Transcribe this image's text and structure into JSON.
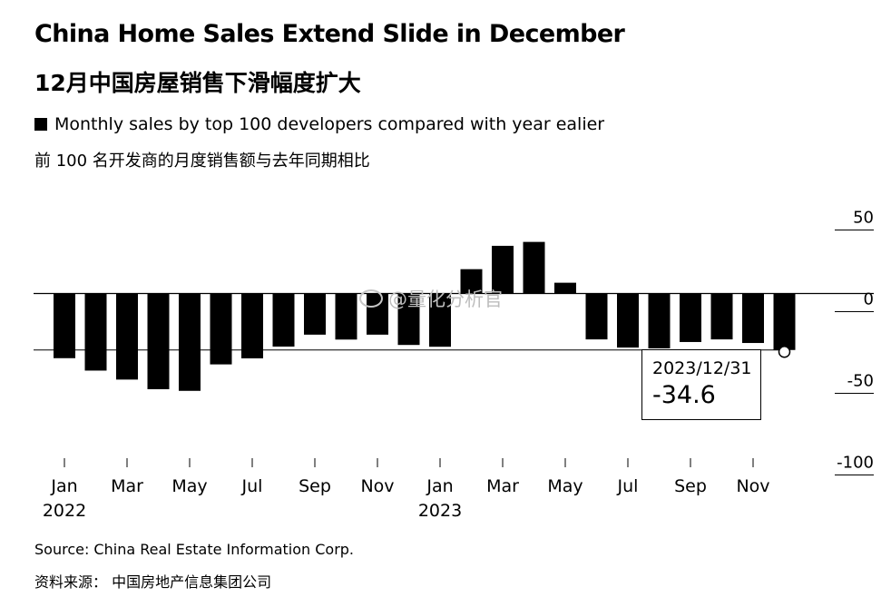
{
  "header": {
    "title": "China Home Sales Extend Slide in December",
    "title_cn": "12月中国房屋销售下滑幅度扩大",
    "subtitle": "Monthly sales by top 100 developers compared with year ealier",
    "subtitle_cn": "前 100 名开发商的月度销售额与去年同期相比"
  },
  "footer": {
    "source": "Source: China Real Estate Information Corp.",
    "source_cn": "资料来源： 中国房地产信息集团公司"
  },
  "watermark": "@量化分析官",
  "tooltip": {
    "date": "2023/12/31",
    "value": "-34.6"
  },
  "colors": {
    "bar": "#000000",
    "axis": "#000000",
    "background": "#ffffff"
  },
  "chart_data": {
    "type": "bar",
    "title": "China Home Sales Extend Slide in December",
    "ylabel": "",
    "xlabel": "",
    "ylim": [
      -100,
      50
    ],
    "y_ticks": [
      50,
      0,
      -50,
      -100
    ],
    "y_tick_labels": [
      "50",
      "0",
      "-50",
      "-100"
    ],
    "x_tick_labels": [
      "Jan",
      "Mar",
      "May",
      "Jul",
      "Sep",
      "Nov",
      "Jan",
      "Mar",
      "May",
      "Jul",
      "Sep",
      "Nov"
    ],
    "x_tick_indices": [
      0,
      2,
      4,
      6,
      8,
      10,
      12,
      14,
      16,
      18,
      20,
      22
    ],
    "year_labels": [
      {
        "label": "2022",
        "index": 0
      },
      {
        "label": "2023",
        "index": 12
      }
    ],
    "categories": [
      "2022-01",
      "2022-02",
      "2022-03",
      "2022-04",
      "2022-05",
      "2022-06",
      "2022-07",
      "2022-08",
      "2022-09",
      "2022-10",
      "2022-11",
      "2022-12",
      "2023-01",
      "2023-02",
      "2023-03",
      "2023-04",
      "2023-05",
      "2023-06",
      "2023-07",
      "2023-08",
      "2023-09",
      "2023-10",
      "2023-11",
      "2023-12"
    ],
    "values": [
      -39.6,
      -47.2,
      -52.7,
      -58.6,
      -59.6,
      -43.4,
      -39.7,
      -32.5,
      -25.2,
      -28.2,
      -25.2,
      -31.5,
      -32.6,
      14.9,
      29.2,
      31.6,
      6.6,
      -28.1,
      -33.1,
      -33.6,
      -29.7,
      -28.1,
      -30.3,
      -34.6
    ],
    "reference_line_value": -34.6,
    "highlight_index": 23,
    "grid": false
  }
}
